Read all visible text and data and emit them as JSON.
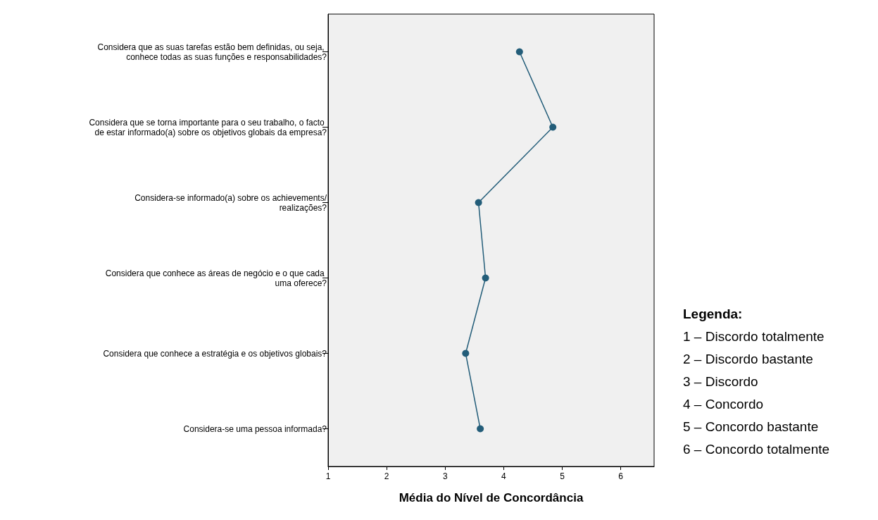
{
  "chart_data": {
    "type": "line",
    "orientation": "horizontal",
    "xlabel": "Média do Nível de Concordância",
    "categories": [
      "Considera que as suas tarefas estão bem definidas, ou seja, conhece todas as suas funções e responsabilidades?",
      "Considera que se torna importante para o seu trabalho, o facto de estar informado(a) sobre os objetivos globais da empresa?",
      "Considera-se informado(a) sobre os achievements/realizações?",
      "Considera que conhece as áreas de negócio e o que cada uma oferece?",
      "Considera que conhece a estratégia e os objetivos globais?",
      "Considera-se uma pessoa informada?"
    ],
    "values": [
      4.27,
      4.84,
      3.57,
      3.69,
      3.35,
      3.6
    ],
    "color": "#235d79",
    "marker": "circle",
    "line_style": "solid",
    "grid": false,
    "xlim": [
      1,
      6.57
    ],
    "xticks": [
      1,
      2,
      3,
      4,
      5,
      6
    ],
    "annotations": [
      "Legenda:",
      "1 – Discordo totalmente",
      "2 – Discordo bastante",
      "3 – Discordo",
      "4 – Concordo",
      "5 – Concordo bastante",
      "6 – Concordo totalmente"
    ]
  }
}
